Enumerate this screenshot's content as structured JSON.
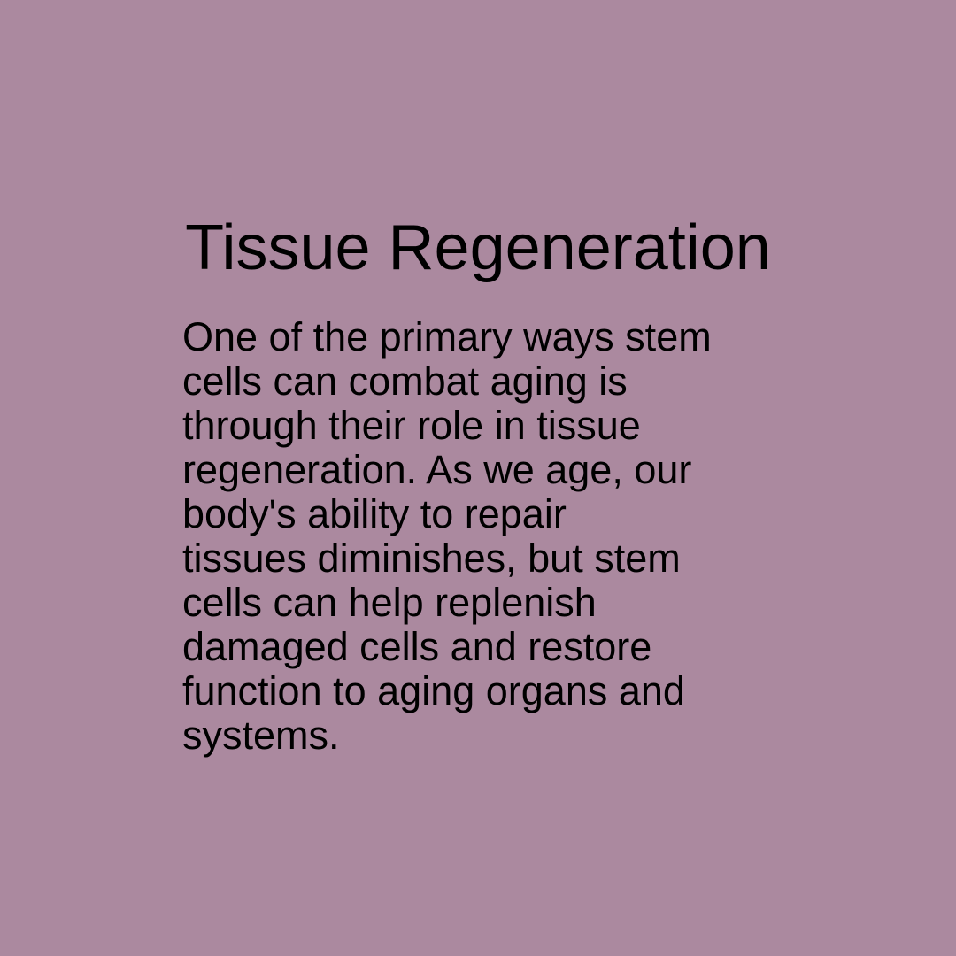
{
  "slide": {
    "background_color": "#ab899f",
    "text_color": "#000000",
    "title": "Tissue Regeneration",
    "body_lines": [
      "One of the primary ways stem",
      "cells can combat aging is",
      "through their role in tissue",
      "regeneration. As we age, our",
      "body's ability to repair",
      "tissues diminishes, but stem",
      "cells can help replenish",
      "damaged cells and restore",
      "function to aging organs and",
      "systems."
    ]
  }
}
